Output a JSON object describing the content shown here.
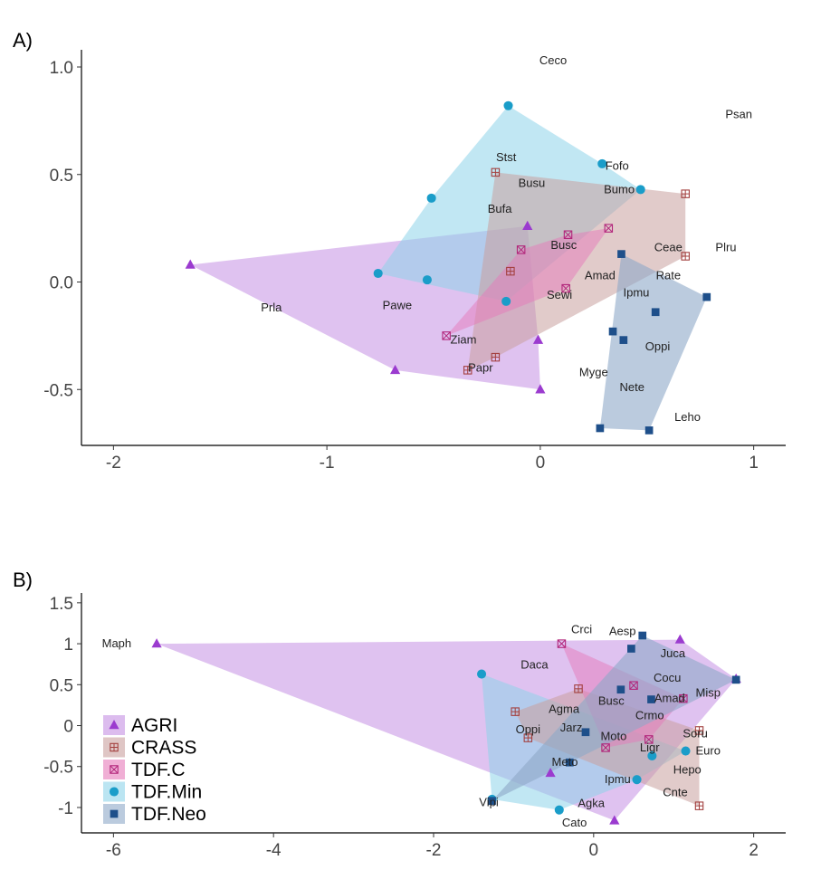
{
  "chart_data": [
    {
      "panel": "A)",
      "type": "scatter",
      "xlim": [
        -2.15,
        1.15
      ],
      "ylim": [
        -0.76,
        1.08
      ],
      "xticks": [
        -2,
        -1,
        0,
        1
      ],
      "yticks": [
        -0.5,
        0.0,
        0.5,
        1.0
      ],
      "xtick_labels": [
        "-2",
        "-1",
        "0",
        "1"
      ],
      "ytick_labels": [
        "-0.5",
        "0.0",
        "0.5",
        "1.0"
      ],
      "groups": [
        {
          "name": "AGRI",
          "color": "#9b3bcf",
          "fill": "#c58fe3",
          "hull_opacity": 0.55,
          "marker": "triangle",
          "points": [
            [
              -1.64,
              0.08
            ],
            [
              -0.68,
              -0.41
            ],
            [
              -0.06,
              0.26
            ],
            [
              -0.01,
              -0.27
            ],
            [
              0.0,
              -0.5
            ]
          ]
        },
        {
          "name": "TDF.Min",
          "color": "#1a9dc9",
          "fill": "#8ed3ea",
          "hull_opacity": 0.55,
          "marker": "circle",
          "points": [
            [
              -0.76,
              0.04
            ],
            [
              -0.51,
              0.39
            ],
            [
              -0.53,
              0.01
            ],
            [
              -0.16,
              -0.09
            ],
            [
              -0.15,
              0.82
            ],
            [
              0.29,
              0.55
            ],
            [
              0.47,
              0.43
            ]
          ]
        },
        {
          "name": "CRASS",
          "color": "#a3403f",
          "fill": "#c9a09f",
          "hull_opacity": 0.55,
          "marker": "square-plus",
          "points": [
            [
              -0.21,
              0.51
            ],
            [
              0.68,
              0.41
            ],
            [
              0.68,
              0.12
            ],
            [
              -0.14,
              0.05
            ],
            [
              -0.21,
              -0.35
            ],
            [
              -0.34,
              -0.41
            ]
          ]
        },
        {
          "name": "TDF.C",
          "color": "#b2267b",
          "fill": "#e67ab9",
          "hull_opacity": 0.5,
          "marker": "square-x",
          "points": [
            [
              -0.44,
              -0.25
            ],
            [
              -0.09,
              0.15
            ],
            [
              0.13,
              0.22
            ],
            [
              0.12,
              -0.03
            ],
            [
              0.32,
              0.25
            ]
          ]
        },
        {
          "name": "TDF.Neo",
          "color": "#1e4f8a",
          "fill": "#8ea8c8",
          "hull_opacity": 0.6,
          "marker": "square",
          "points": [
            [
              0.38,
              0.13
            ],
            [
              0.78,
              -0.07
            ],
            [
              0.54,
              -0.14
            ],
            [
              0.34,
              -0.23
            ],
            [
              0.39,
              -0.27
            ],
            [
              0.28,
              -0.68
            ],
            [
              0.51,
              -0.69
            ]
          ]
        }
      ],
      "labels": [
        {
          "text": "Ceco",
          "x": 0.06,
          "y": 1.03
        },
        {
          "text": "Psan",
          "x": 0.93,
          "y": 0.78
        },
        {
          "text": "Stst",
          "x": -0.16,
          "y": 0.58
        },
        {
          "text": "Fofo",
          "x": 0.36,
          "y": 0.54
        },
        {
          "text": "Busu",
          "x": -0.04,
          "y": 0.46
        },
        {
          "text": "Bumo",
          "x": 0.37,
          "y": 0.43
        },
        {
          "text": "Bufa",
          "x": -0.19,
          "y": 0.34
        },
        {
          "text": "Busc",
          "x": 0.11,
          "y": 0.17
        },
        {
          "text": "Ceae",
          "x": 0.6,
          "y": 0.16
        },
        {
          "text": "Plru",
          "x": 0.87,
          "y": 0.16
        },
        {
          "text": "Amad",
          "x": 0.28,
          "y": 0.03
        },
        {
          "text": "Rate",
          "x": 0.6,
          "y": 0.03
        },
        {
          "text": "Sewi",
          "x": 0.09,
          "y": -0.06
        },
        {
          "text": "Ipmu",
          "x": 0.45,
          "y": -0.05
        },
        {
          "text": "Prla",
          "x": -1.26,
          "y": -0.12
        },
        {
          "text": "Pawe",
          "x": -0.67,
          "y": -0.11
        },
        {
          "text": "Ziam",
          "x": -0.36,
          "y": -0.27
        },
        {
          "text": "Oppi",
          "x": 0.55,
          "y": -0.3
        },
        {
          "text": "Papr",
          "x": -0.28,
          "y": -0.4
        },
        {
          "text": "Myge",
          "x": 0.25,
          "y": -0.42
        },
        {
          "text": "Nete",
          "x": 0.43,
          "y": -0.49
        },
        {
          "text": "Leho",
          "x": 0.69,
          "y": -0.63
        }
      ]
    },
    {
      "panel": "B)",
      "type": "scatter",
      "xlim": [
        -6.4,
        2.4
      ],
      "ylim": [
        -1.31,
        1.62
      ],
      "xticks": [
        -6,
        -4,
        -2,
        0,
        2
      ],
      "yticks": [
        -1,
        -0.5,
        0,
        0.5,
        1,
        1.5
      ],
      "xtick_labels": [
        "-6",
        "-4",
        "-2",
        "0",
        "2"
      ],
      "ytick_labels": [
        "-1",
        "-0.5",
        "0",
        "0.5",
        "1",
        "1.5"
      ],
      "legend_position": "bottom-left",
      "groups": [
        {
          "name": "AGRI",
          "color": "#9b3bcf",
          "fill": "#c58fe3",
          "hull_opacity": 0.55,
          "marker": "triangle",
          "points": [
            [
              -5.46,
              1.0
            ],
            [
              1.08,
              1.05
            ],
            [
              1.78,
              0.57
            ],
            [
              -0.54,
              -0.58
            ],
            [
              0.26,
              -1.16
            ]
          ]
        },
        {
          "name": "TDF.Min",
          "color": "#1a9dc9",
          "fill": "#8ed3ea",
          "hull_opacity": 0.55,
          "marker": "circle",
          "points": [
            [
              -1.4,
              0.63
            ],
            [
              -0.43,
              -1.03
            ],
            [
              1.15,
              -0.31
            ],
            [
              0.73,
              -0.37
            ],
            [
              0.54,
              -0.66
            ],
            [
              -1.27,
              -0.9
            ]
          ]
        },
        {
          "name": "CRASS",
          "color": "#a3403f",
          "fill": "#c9a09f",
          "hull_opacity": 0.55,
          "marker": "square-plus",
          "points": [
            [
              -0.98,
              0.17
            ],
            [
              -0.19,
              0.45
            ],
            [
              -0.82,
              -0.15
            ],
            [
              1.32,
              -0.98
            ],
            [
              1.32,
              -0.06
            ]
          ]
        },
        {
          "name": "TDF.C",
          "color": "#b2267b",
          "fill": "#e67ab9",
          "hull_opacity": 0.5,
          "marker": "square-x",
          "points": [
            [
              -0.4,
              1.0
            ],
            [
              0.5,
              0.49
            ],
            [
              1.12,
              0.33
            ],
            [
              0.15,
              -0.27
            ],
            [
              0.69,
              -0.17
            ]
          ]
        },
        {
          "name": "TDF.Neo",
          "color": "#1e4f8a",
          "fill": "#8ea8c8",
          "hull_opacity": 0.6,
          "marker": "square",
          "points": [
            [
              0.61,
              1.1
            ],
            [
              0.47,
              0.94
            ],
            [
              1.78,
              0.56
            ],
            [
              0.34,
              0.44
            ],
            [
              0.72,
              0.32
            ],
            [
              -0.1,
              -0.08
            ],
            [
              -0.3,
              -0.45
            ],
            [
              -1.27,
              -0.92
            ]
          ]
        }
      ],
      "labels": [
        {
          "text": "Maph",
          "x": -5.96,
          "y": 1.0
        },
        {
          "text": "Crci",
          "x": -0.15,
          "y": 1.17
        },
        {
          "text": "Aesp",
          "x": 0.36,
          "y": 1.15
        },
        {
          "text": "Juca",
          "x": 0.99,
          "y": 0.88
        },
        {
          "text": "Daca",
          "x": -0.74,
          "y": 0.74
        },
        {
          "text": "Cocu",
          "x": 0.92,
          "y": 0.58
        },
        {
          "text": "Busc",
          "x": 0.22,
          "y": 0.3
        },
        {
          "text": "Amad",
          "x": 0.95,
          "y": 0.33
        },
        {
          "text": "Misp",
          "x": 1.43,
          "y": 0.4
        },
        {
          "text": "Agma",
          "x": -0.37,
          "y": 0.2
        },
        {
          "text": "Crmo",
          "x": 0.7,
          "y": 0.12
        },
        {
          "text": "Oppi",
          "x": -0.82,
          "y": -0.05
        },
        {
          "text": "Jarz",
          "x": -0.28,
          "y": -0.03
        },
        {
          "text": "Soru",
          "x": 1.27,
          "y": -0.1
        },
        {
          "text": "Moto",
          "x": 0.25,
          "y": -0.13
        },
        {
          "text": "Ligr",
          "x": 0.7,
          "y": -0.27
        },
        {
          "text": "Euro",
          "x": 1.43,
          "y": -0.31
        },
        {
          "text": "Meto",
          "x": -0.36,
          "y": -0.45
        },
        {
          "text": "Hepo",
          "x": 1.17,
          "y": -0.54
        },
        {
          "text": "Ipmu",
          "x": 0.3,
          "y": -0.66
        },
        {
          "text": "Cnte",
          "x": 1.02,
          "y": -0.82
        },
        {
          "text": "Vipi",
          "x": -1.31,
          "y": -0.94
        },
        {
          "text": "Agka",
          "x": -0.03,
          "y": -0.95
        },
        {
          "text": "Cato",
          "x": -0.24,
          "y": -1.19
        }
      ],
      "legend": [
        {
          "name": "AGRI",
          "marker": "triangle",
          "color": "#9b3bcf",
          "fill": "#c58fe3"
        },
        {
          "name": "CRASS",
          "marker": "square-plus",
          "color": "#a3403f",
          "fill": "#c9a09f"
        },
        {
          "name": "TDF.C",
          "marker": "square-x",
          "color": "#b2267b",
          "fill": "#e67ab9"
        },
        {
          "name": "TDF.Min",
          "marker": "circle",
          "color": "#1a9dc9",
          "fill": "#8ed3ea"
        },
        {
          "name": "TDF.Neo",
          "marker": "square",
          "color": "#1e4f8a",
          "fill": "#8ea8c8"
        }
      ]
    }
  ]
}
